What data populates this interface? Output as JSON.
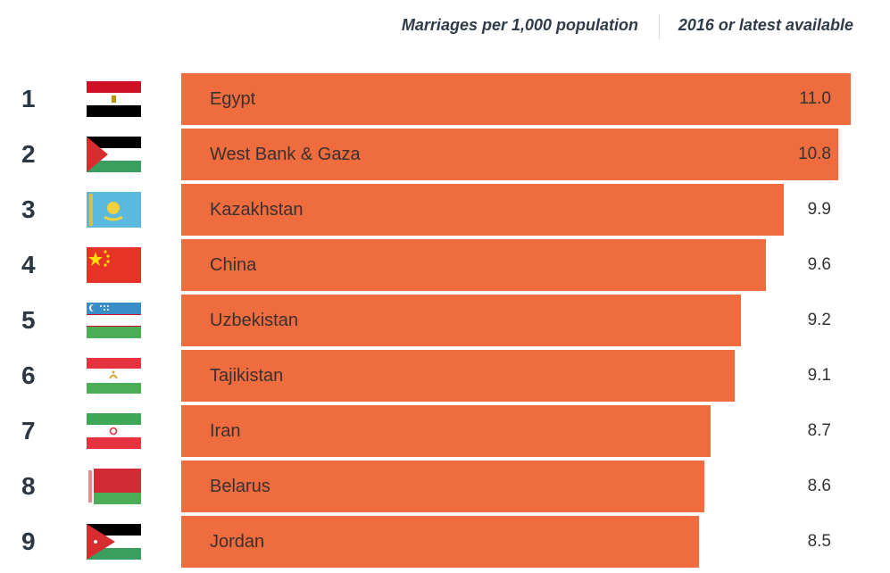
{
  "header": {
    "measure": "Marriages per 1,000 population",
    "period": "2016 or latest available"
  },
  "colors": {
    "bar": "#ef6c3f",
    "text": "#2b3743"
  },
  "chart_data": {
    "type": "bar",
    "orientation": "horizontal",
    "categories": [
      "Egypt",
      "West Bank & Gaza",
      "Kazakhstan",
      "China",
      "Uzbekistan",
      "Tajikistan",
      "Iran",
      "Belarus",
      "Jordan"
    ],
    "values": [
      11.0,
      10.8,
      9.9,
      9.6,
      9.2,
      9.1,
      8.7,
      8.6,
      8.5
    ],
    "value_labels": [
      "11.0",
      "10.8",
      "9.9",
      "9.6",
      "9.2",
      "9.1",
      "8.7",
      "8.6",
      "8.5"
    ],
    "ranks": [
      "1",
      "2",
      "3",
      "4",
      "5",
      "6",
      "7",
      "8",
      "9"
    ],
    "flags": [
      "egypt-flag-icon",
      "palestine-flag-icon",
      "kazakhstan-flag-icon",
      "china-flag-icon",
      "uzbekistan-flag-icon",
      "tajikistan-flag-icon",
      "iran-flag-icon",
      "belarus-flag-icon",
      "jordan-flag-icon"
    ],
    "title": "",
    "xlabel": "Marriages per 1,000 population",
    "ylabel": "",
    "xlim": [
      0,
      11.0
    ],
    "grid": false,
    "legend": "none"
  }
}
